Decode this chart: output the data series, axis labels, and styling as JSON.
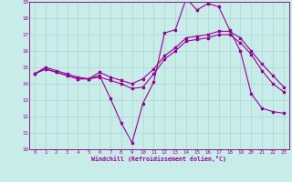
{
  "xlabel": "Windchill (Refroidissement éolien,°C)",
  "bg_color": "#c8ece8",
  "grid_color": "#b0d8d4",
  "line_color": "#990099",
  "spine_color": "#7a007a",
  "xlim": [
    -0.5,
    23.5
  ],
  "ylim": [
    10,
    19
  ],
  "xticks": [
    0,
    1,
    2,
    3,
    4,
    5,
    6,
    7,
    8,
    9,
    10,
    11,
    12,
    13,
    14,
    15,
    16,
    17,
    18,
    19,
    20,
    21,
    22,
    23
  ],
  "yticks": [
    10,
    11,
    12,
    13,
    14,
    15,
    16,
    17,
    18,
    19
  ],
  "line1_x": [
    0,
    1,
    2,
    3,
    4,
    5,
    6,
    7,
    8,
    9,
    10,
    11,
    12,
    13,
    14,
    15,
    16,
    17,
    18,
    19,
    20,
    21,
    22,
    23
  ],
  "line1_y": [
    14.6,
    15.0,
    14.8,
    14.6,
    14.4,
    14.3,
    14.5,
    13.1,
    11.6,
    10.4,
    12.8,
    14.1,
    17.1,
    17.3,
    19.2,
    18.5,
    18.9,
    18.7,
    17.3,
    16.0,
    13.4,
    12.5,
    12.3,
    12.2
  ],
  "line2_x": [
    0,
    1,
    2,
    3,
    4,
    5,
    6,
    7,
    8,
    9,
    10,
    11,
    12,
    13,
    14,
    15,
    16,
    17,
    18,
    19,
    20,
    21,
    22,
    23
  ],
  "line2_y": [
    14.6,
    14.9,
    14.7,
    14.5,
    14.3,
    14.3,
    14.4,
    14.2,
    14.0,
    13.7,
    13.8,
    14.6,
    15.5,
    16.0,
    16.6,
    16.7,
    16.8,
    17.0,
    17.0,
    16.5,
    15.8,
    14.8,
    14.0,
    13.5
  ],
  "line3_x": [
    0,
    1,
    2,
    3,
    4,
    5,
    6,
    7,
    8,
    9,
    10,
    11,
    12,
    13,
    14,
    15,
    16,
    17,
    18,
    19,
    20,
    21,
    22,
    23
  ],
  "line3_y": [
    14.6,
    14.9,
    14.7,
    14.5,
    14.3,
    14.3,
    14.7,
    14.4,
    14.2,
    14.0,
    14.3,
    14.9,
    15.7,
    16.2,
    16.8,
    16.9,
    17.0,
    17.2,
    17.2,
    16.8,
    16.0,
    15.2,
    14.5,
    13.8
  ],
  "marker_size": 1.8,
  "line_width": 0.8,
  "tick_fontsize": 4.2,
  "xlabel_fontsize": 4.8
}
